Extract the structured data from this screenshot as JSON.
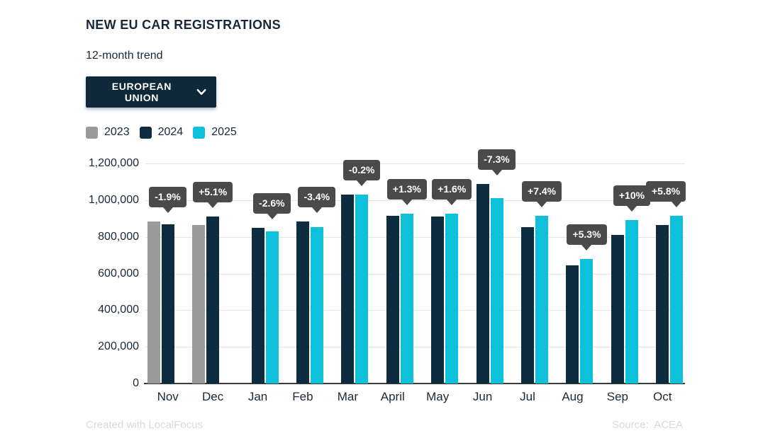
{
  "header": {
    "title": "NEW EU CAR REGISTRATIONS",
    "subtitle": "12-month trend"
  },
  "region_selector": {
    "label": "EUROPEAN UNION",
    "icon": "chevron-down-icon"
  },
  "legend": {
    "items": [
      {
        "label": "2023",
        "color": "#9a9a9a"
      },
      {
        "label": "2024",
        "color": "#0e2c3f"
      },
      {
        "label": "2025",
        "color": "#0fc0da"
      }
    ]
  },
  "chart_data": {
    "type": "bar",
    "title": "NEW EU CAR REGISTRATIONS",
    "subtitle": "12-month trend",
    "categories": [
      "Nov",
      "Dec",
      "Jan",
      "Feb",
      "Mar",
      "April",
      "May",
      "Jun",
      "Jul",
      "Aug",
      "Sep",
      "Oct"
    ],
    "series": [
      {
        "name": "2023",
        "color": "#9a9a9a",
        "values": [
          885000,
          866000,
          null,
          null,
          null,
          null,
          null,
          null,
          null,
          null,
          null,
          null
        ]
      },
      {
        "name": "2024",
        "color": "#0e2c3f",
        "values": [
          868000,
          910000,
          850000,
          882000,
          1031000,
          913000,
          911000,
          1090000,
          852000,
          644000,
          809000,
          866000
        ]
      },
      {
        "name": "2025",
        "color": "#0fc0da",
        "values": [
          null,
          null,
          828000,
          852000,
          1029000,
          925000,
          926000,
          1010000,
          915000,
          678000,
          890000,
          916000
        ]
      }
    ],
    "change_labels": [
      "-1.9%",
      "+5.1%",
      "-2.6%",
      "-3.4%",
      "-0.2%",
      "+1.3%",
      "+1.6%",
      "-7.3%",
      "+7.4%",
      "+5.3%",
      "+10%",
      "+5.8%"
    ],
    "ylim": [
      0,
      1200000
    ],
    "ytick_step": 200000,
    "ytick_labels": [
      "0",
      "200,000",
      "400,000",
      "600,000",
      "800,000",
      "1,000,000",
      "1,200,000"
    ],
    "grid": true,
    "legend_position": "top-left"
  },
  "footer": {
    "left": "Created with LocalFocus",
    "right": "Source:  ACEA"
  },
  "colors": {
    "text_navy": "#15293a",
    "badge_bg": "#4a4a4a",
    "badge_text": "#ffffff",
    "grid": "#e4e4e4",
    "axis": "#3b3b3b",
    "footer_text": "#d9d9d9",
    "dropdown_bg": "#10293a",
    "dropdown_text": "#ffffff",
    "bar_2023": "#9a9a9a",
    "bar_2024": "#0e2c3f",
    "bar_2025": "#0fc0da"
  }
}
